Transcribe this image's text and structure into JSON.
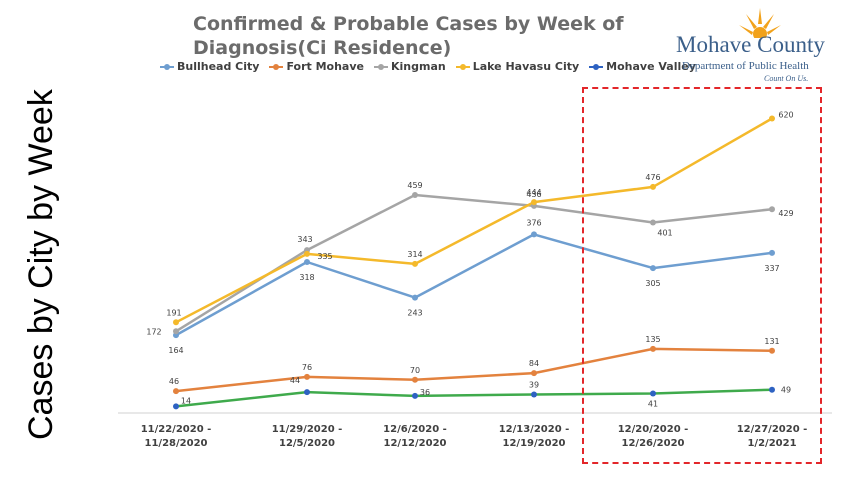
{
  "side_title": "Cases by City by Week",
  "logo": {
    "name": "Mohave County",
    "department": "Department of Public Health",
    "tagline": "Count On Us."
  },
  "chart_data": {
    "type": "line",
    "title": "Confirmed & Probable Cases by Week of Diagnosis(Ci Residence)",
    "categories": [
      [
        "11/22/2020 -",
        "11/28/2020"
      ],
      [
        "11/29/2020 -",
        "12/5/2020"
      ],
      [
        "12/6/2020 -",
        "12/12/2020"
      ],
      [
        "12/13/2020 -",
        "12/19/2020"
      ],
      [
        "12/20/2020 -",
        "12/26/2020"
      ],
      [
        "12/27/2020 -",
        "1/2/2021"
      ]
    ],
    "ylim": [
      0,
      660
    ],
    "grid": false,
    "legend_position": "top",
    "series": [
      {
        "name": "Bullhead City",
        "color": "#6e9ed0",
        "values": [
          164,
          318,
          243,
          376,
          305,
          337
        ]
      },
      {
        "name": "Fort Mohave",
        "color": "#e3823e",
        "values": [
          46,
          76,
          70,
          84,
          135,
          131
        ]
      },
      {
        "name": "Kingman",
        "color": "#a5a5a5",
        "values": [
          172,
          343,
          459,
          436,
          401,
          429
        ]
      },
      {
        "name": "Lake Havasu City",
        "color": "#f4b92b",
        "values": [
          191,
          335,
          314,
          444,
          476,
          620
        ]
      },
      {
        "name": "Mohave Valley",
        "color": "#2e62c2",
        "values": [
          14,
          44,
          36,
          39,
          41,
          49
        ]
      }
    ],
    "extra_line": {
      "color": "#3faa4c",
      "values": [
        14,
        44,
        36,
        39,
        41,
        49
      ]
    },
    "highlight": {
      "from_category": 4,
      "to_category": 5,
      "color": "#e3262a"
    }
  }
}
